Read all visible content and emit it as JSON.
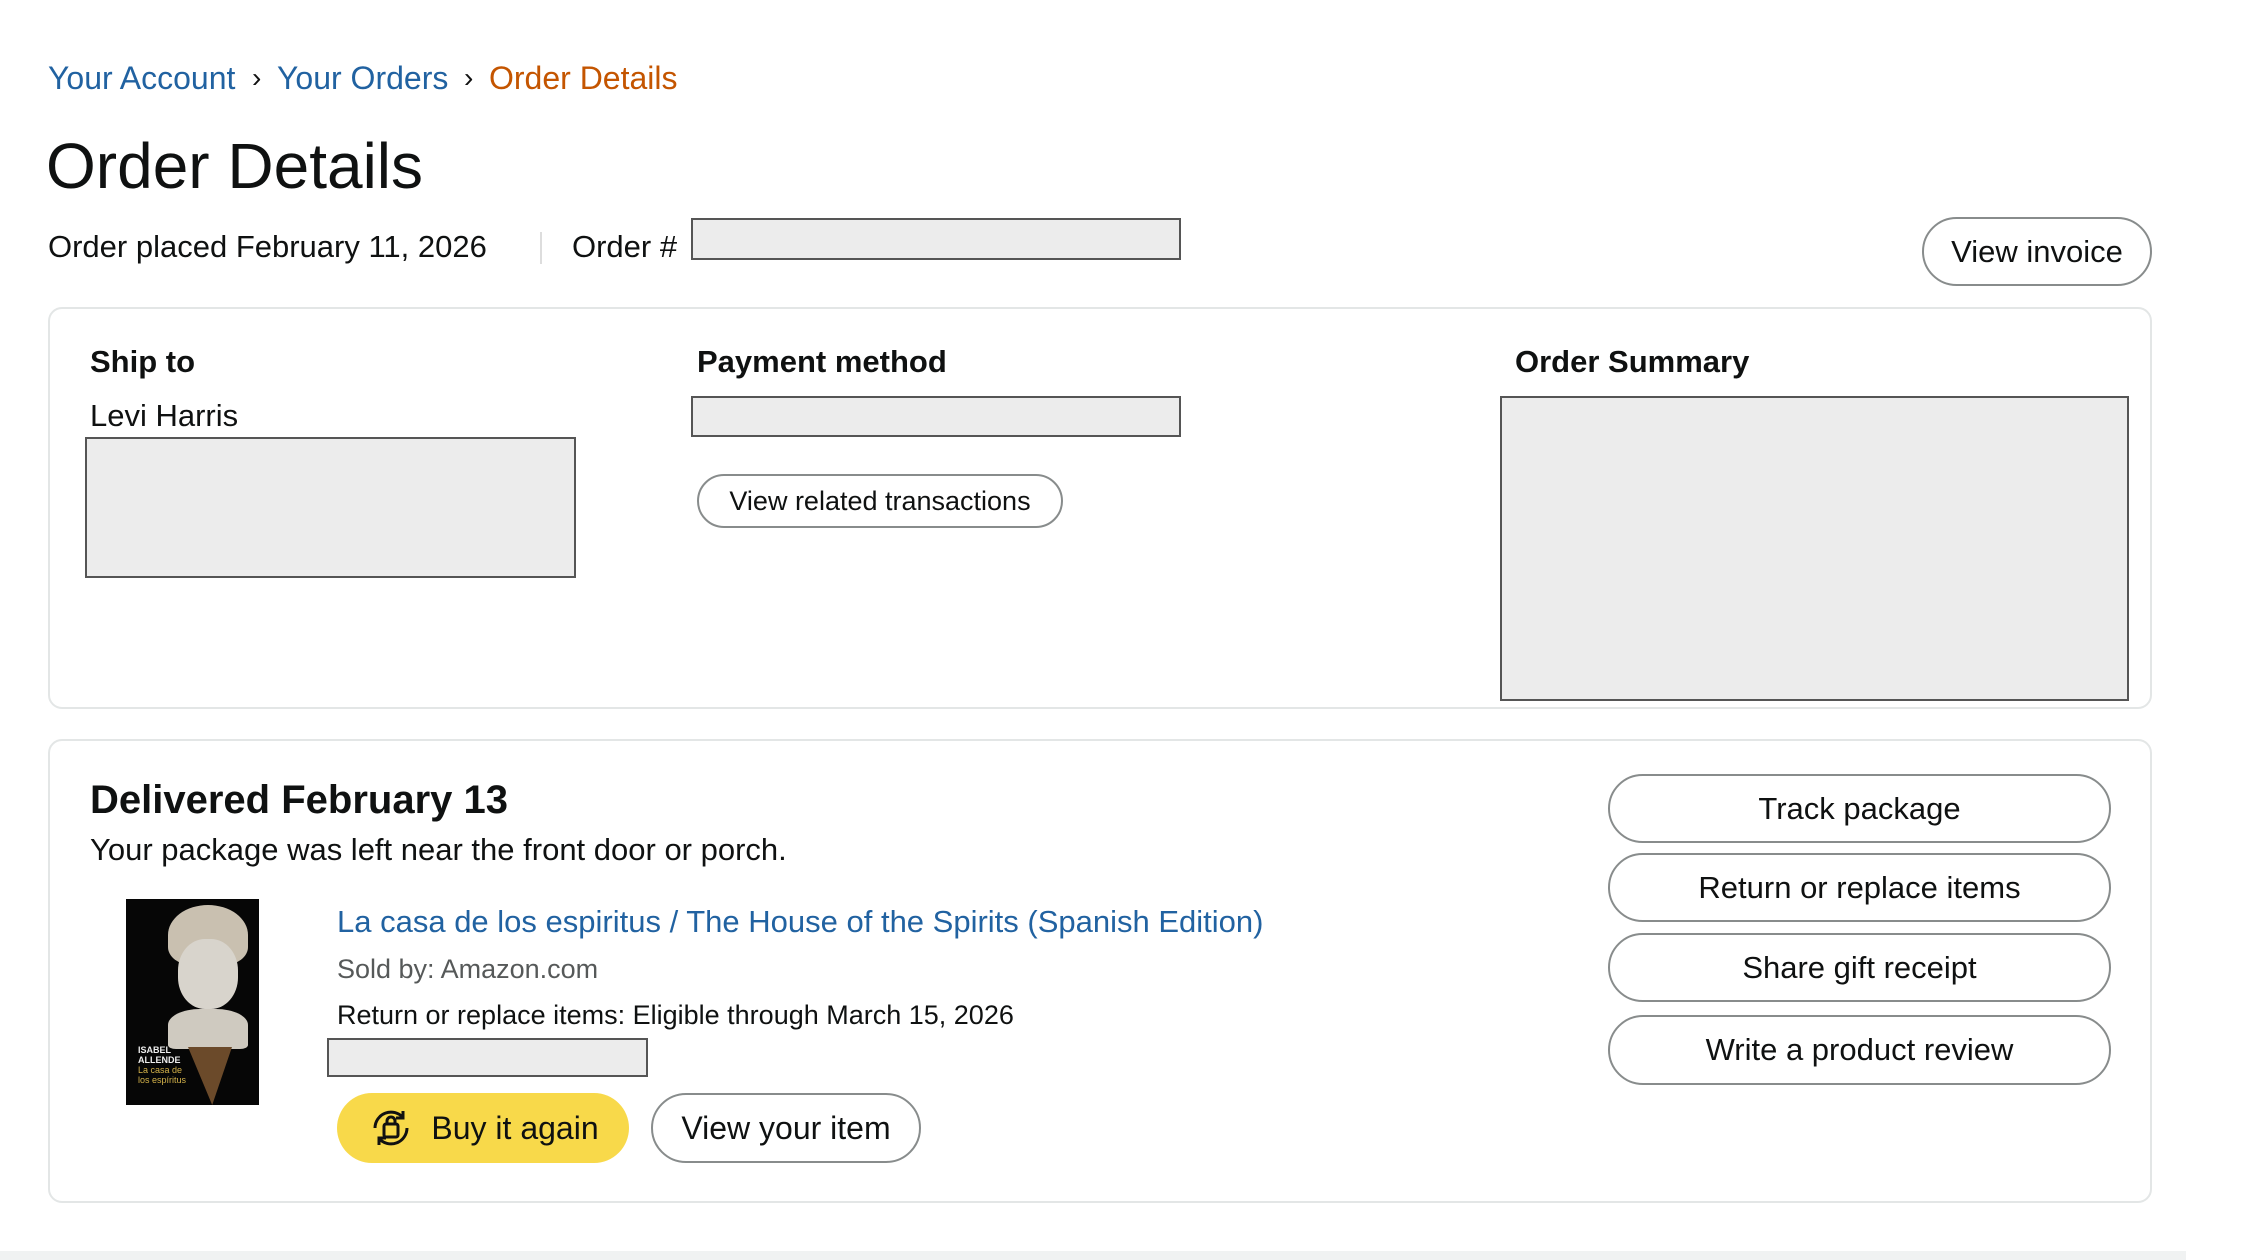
{
  "breadcrumb": {
    "items": [
      "Your Account",
      "Your Orders",
      "Order Details"
    ],
    "separator": "›"
  },
  "page_title": "Order Details",
  "order_meta": {
    "placed": "Order placed February 11, 2026",
    "order_number_label": "Order #"
  },
  "header_actions": {
    "view_invoice": "View invoice"
  },
  "ship_to": {
    "label": "Ship to",
    "name": "Levi Harris"
  },
  "payment": {
    "label": "Payment method",
    "view_transactions": "View related transactions"
  },
  "order_summary": {
    "label": "Order Summary"
  },
  "shipment": {
    "status": "Delivered February 13",
    "note": "Your package was left near the front door or porch.",
    "item": {
      "title": "La casa de los espiritus / The House of the Spirits (Spanish Edition)",
      "sold_by": "Sold by: Amazon.com",
      "return_window": "Return or replace items: Eligible through March 15, 2026",
      "cover_text": [
        "ISABEL",
        "ALLENDE",
        "La casa de",
        "los espíritus"
      ]
    },
    "buy_again": "Buy it again",
    "view_item": "View your item",
    "actions": [
      "Track package",
      "Return or replace items",
      "Share gift receipt",
      "Write a product review"
    ]
  },
  "colors": {
    "link": "#2162a1",
    "current_crumb": "#c45500",
    "buy_again": "#ffd814",
    "border": "#e3e6e6"
  }
}
